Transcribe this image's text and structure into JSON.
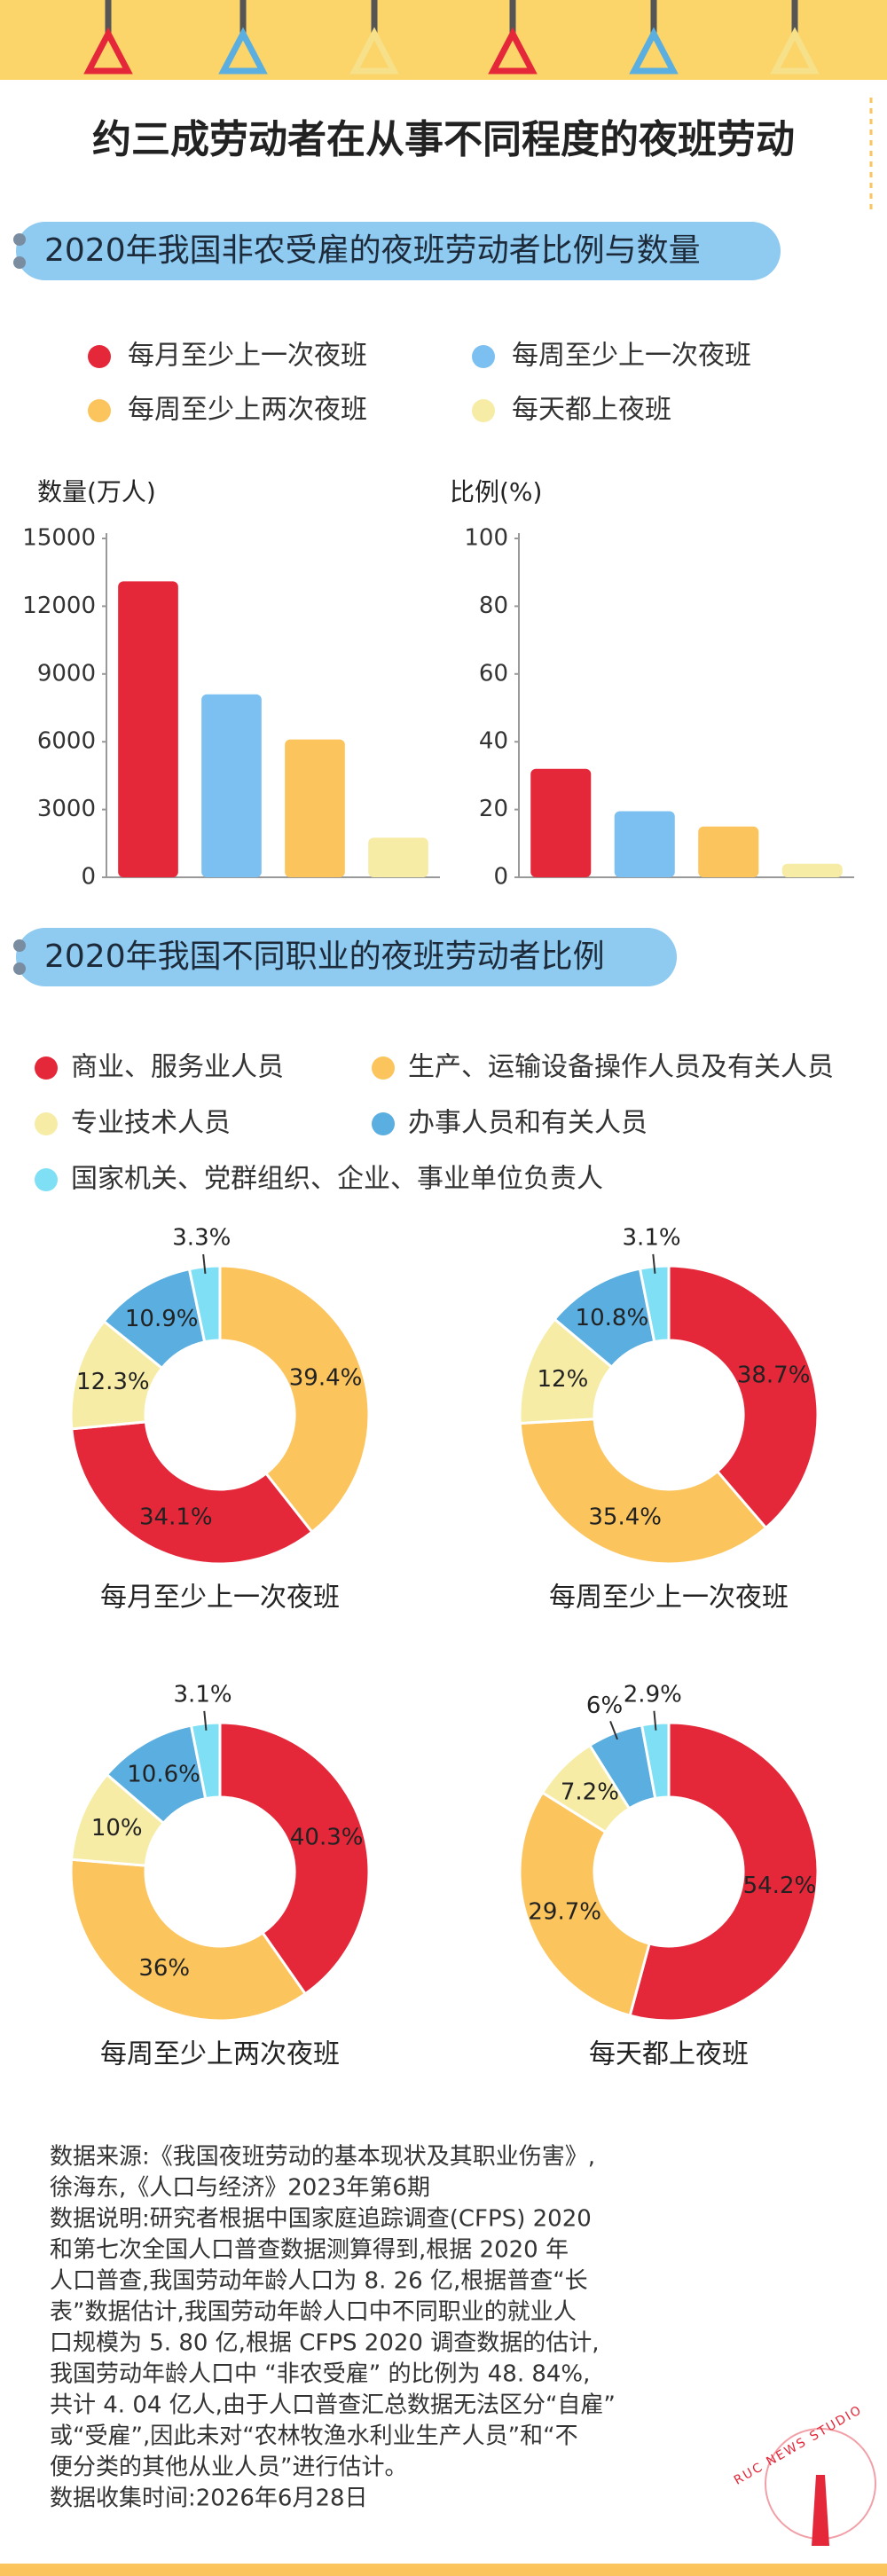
{
  "title": "约三成劳动者在从事不同程度的夜班劳动",
  "sections": [
    "2020年我国非农受雇的夜班劳动者比例与数量",
    "2020年我国不同职业的夜班劳动者比例"
  ],
  "bar_legend": [
    {
      "name": "每月至少上一次夜班",
      "color": "#e4283a"
    },
    {
      "name": "每周至少上一次夜班",
      "color": "#7cc0f2"
    },
    {
      "name": "每周至少上两次夜班",
      "color": "#fbc45c"
    },
    {
      "name": "每天都上夜班",
      "color": "#f7eca6"
    }
  ],
  "donut_legend": [
    {
      "name": "商业、服务业人员",
      "color": "#e4283a"
    },
    {
      "name": "生产、运输设备操作人员及有关人员",
      "color": "#fbc45c"
    },
    {
      "name": "专业技术人员",
      "color": "#f7eca6"
    },
    {
      "name": "办事人员和有关人员",
      "color": "#5aaee0"
    },
    {
      "name": "国家机关、党群组织、企业、事业单位负责人",
      "color": "#7fe0f5"
    }
  ],
  "chart_data": [
    {
      "type": "bar",
      "ylabel": "数量(万人)",
      "values": [
        13100,
        8100,
        6100,
        1750
      ],
      "colors": [
        "#e4283a",
        "#7cc0f2",
        "#fbc45c",
        "#f7eca6"
      ],
      "ylim": [
        0,
        15000
      ],
      "yticks": [
        0,
        3000,
        6000,
        9000,
        12000,
        15000
      ]
    },
    {
      "type": "bar",
      "ylabel": "比例(%)",
      "values": [
        32,
        19.5,
        15,
        4
      ],
      "colors": [
        "#e4283a",
        "#7cc0f2",
        "#fbc45c",
        "#f7eca6"
      ],
      "ylim": [
        0,
        100
      ],
      "yticks": [
        0,
        20,
        40,
        60,
        80,
        100
      ]
    },
    {
      "type": "donut",
      "title": "每月至少上一次夜班",
      "values": [
        39.4,
        34.1,
        12.3,
        10.9,
        3.3
      ],
      "value_labels": [
        "39.4%",
        "34.1%",
        "12.3%",
        "10.9%",
        "3.3%"
      ],
      "colors": [
        "#fbc45c",
        "#e4283a",
        "#f7eca6",
        "#5aaee0",
        "#7fe0f5"
      ]
    },
    {
      "type": "donut",
      "title": "每周至少上一次夜班",
      "values": [
        38.7,
        35.4,
        12,
        10.8,
        3.1
      ],
      "value_labels": [
        "38.7%",
        "35.4%",
        "12%",
        "10.8%",
        "3.1%"
      ],
      "colors": [
        "#e4283a",
        "#fbc45c",
        "#f7eca6",
        "#5aaee0",
        "#7fe0f5"
      ]
    },
    {
      "type": "donut",
      "title": "每周至少上两次夜班",
      "values": [
        40.3,
        36,
        10,
        10.6,
        3.1
      ],
      "value_labels": [
        "40.3%",
        "36%",
        "10%",
        "10.6%",
        "3.1%"
      ],
      "colors": [
        "#e4283a",
        "#fbc45c",
        "#f7eca6",
        "#5aaee0",
        "#7fe0f5"
      ]
    },
    {
      "type": "donut",
      "title": "每天都上夜班",
      "values": [
        54.2,
        29.7,
        7.2,
        6,
        2.9
      ],
      "value_labels": [
        "54.2%",
        "29.7%",
        "7.2%",
        "6%",
        "2.9%"
      ],
      "colors": [
        "#e4283a",
        "#fbc45c",
        "#f7eca6",
        "#5aaee0",
        "#7fe0f5"
      ]
    }
  ],
  "notes": [
    "数据来源:《我国夜班劳动的基本现状及其职业伤害》,",
    "徐海东,《人口与经济》2023年第6期",
    "数据说明:研究者根据中国家庭追踪调查(CFPS) 2020",
    "和第七次全国人口普查数据测算得到,根据 2020 年",
    "人口普查,我国劳动年龄人口为 8. 26 亿,根据普查“长",
    "表”数据估计,我国劳动年龄人口中不同职业的就业人",
    "口规模为 5. 80 亿,根据 CFPS 2020 调查数据的估计,",
    "我国劳动年龄人口中 “非农受雇” 的比例为 48. 84%,",
    "共计 4. 04 亿人,由于人口普查汇总数据无法区分“自雇”",
    "或“受雇”,因此未对“农林牧渔水利业生产人员”和“不",
    "便分类的其他从业人员”进行估计。",
    "数据收集时间:2026年6月28日"
  ],
  "watermark": "RUC NEWS STUDIO"
}
